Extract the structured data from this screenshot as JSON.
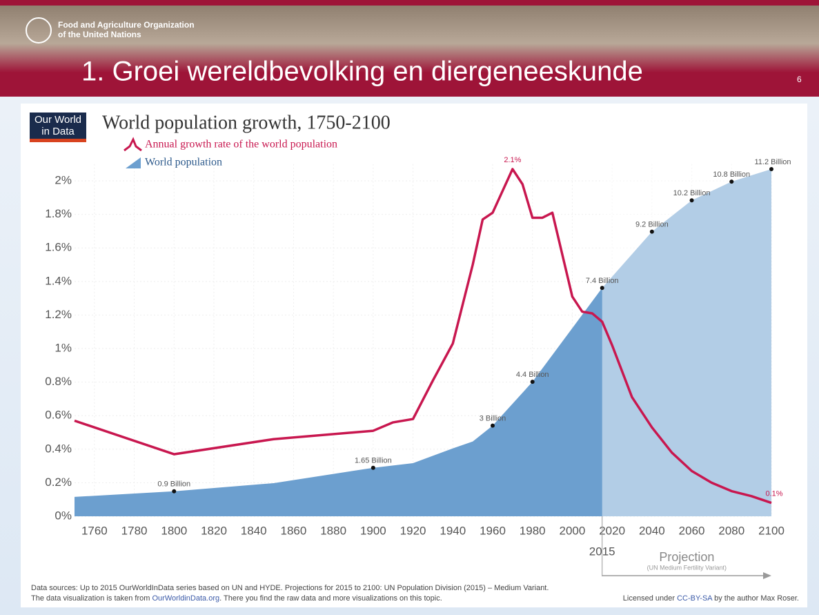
{
  "slide": {
    "title": "1. Groei wereldbevolking en diergeneeskunde",
    "page_number": "6",
    "org_line1": "Food and Agriculture Organization",
    "org_line2": "of the United Nations"
  },
  "logo": {
    "line1": "Our World",
    "line2": "in Data"
  },
  "chart_data": {
    "type": "line",
    "title": "World population growth, 1750-2100",
    "xlim": [
      1750,
      2100
    ],
    "xticks": [
      1760,
      1780,
      1800,
      1820,
      1840,
      1860,
      1880,
      1900,
      1920,
      1940,
      1960,
      1980,
      2000,
      2020,
      2040,
      2060,
      2080,
      2100
    ],
    "ylim": [
      0,
      2.1
    ],
    "yticks": [
      {
        "value": 0,
        "label": "0%"
      },
      {
        "value": 0.2,
        "label": "0.2%"
      },
      {
        "value": 0.4,
        "label": "0.4%"
      },
      {
        "value": 0.6,
        "label": "0.6%"
      },
      {
        "value": 0.8,
        "label": "0.8%"
      },
      {
        "value": 1,
        "label": "1%"
      },
      {
        "value": 1.2,
        "label": "1.2%"
      },
      {
        "value": 1.4,
        "label": "1.4%"
      },
      {
        "value": 1.6,
        "label": "1.6%"
      },
      {
        "value": 1.8,
        "label": "1.8%"
      },
      {
        "value": 2,
        "label": "2%"
      }
    ],
    "y2lim": [
      0.1,
      11.36
    ],
    "grid": true,
    "projection_start": 2015,
    "projection_label": "Projection",
    "projection_note": "(UN Medium Fertility Variant)",
    "series": [
      {
        "name": "Annual growth rate of the world population",
        "type": "line",
        "color": "#c8174f",
        "x": [
          1750,
          1800,
          1850,
          1900,
          1910,
          1920,
          1930,
          1940,
          1950,
          1955,
          1960,
          1965,
          1970,
          1975,
          1980,
          1985,
          1990,
          2000,
          2005,
          2010,
          2015,
          2020,
          2030,
          2040,
          2050,
          2060,
          2070,
          2080,
          2090,
          2100
        ],
        "values": [
          0.57,
          0.37,
          0.46,
          0.51,
          0.56,
          0.58,
          0.81,
          1.03,
          1.5,
          1.77,
          1.81,
          1.94,
          2.07,
          1.98,
          1.78,
          1.78,
          1.81,
          1.31,
          1.22,
          1.21,
          1.16,
          1.02,
          0.71,
          0.53,
          0.38,
          0.27,
          0.2,
          0.15,
          0.12,
          0.08
        ],
        "value_labels": [
          null,
          null,
          null,
          null,
          null,
          null,
          null,
          null,
          null,
          null,
          null,
          null,
          "2.1%",
          null,
          null,
          null,
          null,
          null,
          null,
          null,
          null,
          null,
          null,
          null,
          null,
          null,
          null,
          null,
          null,
          "0.1%"
        ]
      },
      {
        "name": "World population",
        "type": "area",
        "axis": "y2",
        "color": "#6c9fcf",
        "x": [
          1750,
          1800,
          1850,
          1900,
          1920,
          1940,
          1950,
          1960,
          1980,
          2015,
          2040,
          2060,
          2080,
          2100
        ],
        "values": [
          0.72,
          0.9,
          1.16,
          1.65,
          1.8,
          2.27,
          2.49,
          3,
          4.4,
          7.4,
          9.2,
          10.2,
          10.8,
          11.2
        ],
        "value_labels": [
          null,
          "0.9 Billion",
          null,
          "1.65 Billion",
          null,
          null,
          null,
          "3 Billion",
          "4.4 Billion",
          "7.4 Billion",
          "9.2 Billion",
          "10.2 Billion",
          "10.8 Billion",
          "11.2 Billion"
        ]
      }
    ]
  },
  "footer": {
    "sources": "Data sources:  Up to 2015 OurWorldInData series based on UN and HYDE. Projections for 2015 to 2100: UN Population Division (2015) – Medium Variant.",
    "viz_prefix": "The data visualization is taken from",
    "viz_link": "OurWorldinData.org",
    "viz_suffix": ". There you find the raw data and more visualizations on this topic.",
    "license_prefix": "Licensed under",
    "license_link": "CC-BY-SA",
    "license_suffix": "by the author Max Roser."
  }
}
